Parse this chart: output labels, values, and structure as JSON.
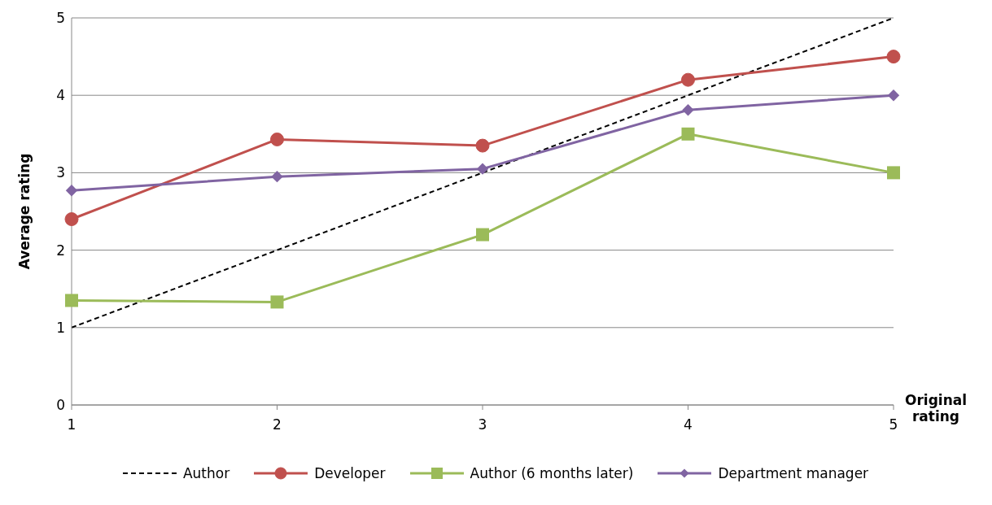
{
  "chart_data": {
    "type": "line",
    "xlabel": "Original rating",
    "ylabel": "Average rating",
    "categories": [
      "1",
      "2",
      "3",
      "4",
      "5"
    ],
    "ylim": [
      0,
      5
    ],
    "yticks": [
      0,
      1,
      2,
      3,
      4,
      5
    ],
    "grid": "y",
    "legend": "bottom",
    "series": [
      {
        "name": "Author",
        "color": "#000000",
        "values": [
          1,
          2,
          3,
          4,
          5
        ],
        "marker": "none",
        "line_style": "dashed"
      },
      {
        "name": "Developer",
        "color": "#c0504d",
        "values": [
          2.4,
          3.43,
          3.35,
          4.2,
          4.5
        ],
        "marker": "circle",
        "line_style": "solid"
      },
      {
        "name": "Author (6 months later)",
        "color": "#9bbb59",
        "values": [
          1.35,
          1.33,
          2.2,
          3.5,
          3.0
        ],
        "marker": "square",
        "line_style": "solid"
      },
      {
        "name": "Department manager",
        "color": "#8064a2",
        "values": [
          2.77,
          2.95,
          3.05,
          3.81,
          4.0
        ],
        "marker": "diamond",
        "line_style": "solid"
      }
    ]
  }
}
